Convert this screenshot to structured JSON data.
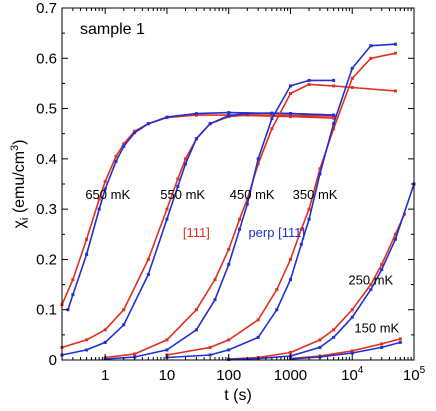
{
  "chart_data": {
    "type": "scatter",
    "title": "",
    "sample_label": "sample 1",
    "xlabel": "t (s)",
    "ylabel": "χ_i (emu/cm^3)",
    "ylabel_main": "χ",
    "ylabel_sub": "i",
    "ylabel_rest": " (emu/cm",
    "ylabel_sup": "3",
    "ylabel_close": ")",
    "x_scale": "log",
    "xlim": [
      0.2,
      100000
    ],
    "ylim": [
      0,
      0.7
    ],
    "x_ticks": [
      {
        "value": 1,
        "label": "1"
      },
      {
        "value": 10,
        "label": "10"
      },
      {
        "value": 100,
        "label": "100"
      },
      {
        "value": 1000,
        "label": "1000"
      },
      {
        "value": 10000,
        "base": "10",
        "exp": "4"
      },
      {
        "value": 100000,
        "base": "10",
        "exp": "5"
      }
    ],
    "y_ticks": [
      {
        "value": 0,
        "label": "0"
      },
      {
        "value": 0.1,
        "label": "0.1"
      },
      {
        "value": 0.2,
        "label": "0.2"
      },
      {
        "value": 0.3,
        "label": "0.3"
      },
      {
        "value": 0.4,
        "label": "0.4"
      },
      {
        "value": 0.5,
        "label": "0.5"
      },
      {
        "value": 0.6,
        "label": "0.6"
      },
      {
        "value": 0.7,
        "label": "0.7"
      }
    ],
    "series_colors": {
      "[111]": "#e03020",
      "perp [111]": "#2030d0"
    },
    "series_labels": [
      {
        "name": "[111]",
        "color": "#e03020",
        "x": 30,
        "y": 0.245
      },
      {
        "name": "perp [111]",
        "color": "#2030d0",
        "x": 600,
        "y": 0.245
      }
    ],
    "temperature_labels": [
      {
        "text": "650 mK",
        "x": 1.1,
        "y": 0.32
      },
      {
        "text": "550 mK",
        "x": 18,
        "y": 0.32
      },
      {
        "text": "450 mK",
        "x": 240,
        "y": 0.32
      },
      {
        "text": "350 mK",
        "x": 2500,
        "y": 0.32
      },
      {
        "text": "250 mK",
        "x": 20000,
        "y": 0.15
      },
      {
        "text": "150 mK",
        "x": 25000,
        "y": 0.055
      }
    ],
    "series": [
      {
        "name": "[111]",
        "temperature": "650 mK",
        "color": "#e03020",
        "x": [
          0.2,
          0.3,
          0.5,
          0.8,
          1,
          1.5,
          2,
          3,
          5,
          10,
          30,
          100,
          1000,
          5000
        ],
        "y": [
          0.11,
          0.16,
          0.24,
          0.32,
          0.355,
          0.405,
          0.43,
          0.455,
          0.47,
          0.482,
          0.487,
          0.487,
          0.484,
          0.481
        ]
      },
      {
        "name": "perp [111]",
        "temperature": "650 mK",
        "color": "#2030d0",
        "x": [
          0.25,
          0.3,
          0.5,
          0.8,
          1,
          1.5,
          2,
          3,
          5,
          10,
          30,
          100,
          1000,
          5000
        ],
        "y": [
          0.1,
          0.13,
          0.21,
          0.3,
          0.34,
          0.395,
          0.425,
          0.452,
          0.47,
          0.483,
          0.49,
          0.492,
          0.49,
          0.487
        ]
      },
      {
        "name": "[111]",
        "temperature": "550 mK",
        "color": "#e03020",
        "x": [
          0.2,
          0.5,
          1,
          2,
          5,
          10,
          15,
          20,
          30,
          50,
          100,
          200,
          500,
          1000,
          5000
        ],
        "y": [
          0.025,
          0.04,
          0.06,
          0.1,
          0.2,
          0.3,
          0.36,
          0.4,
          0.44,
          0.47,
          0.484,
          0.487,
          0.487,
          0.486,
          0.485
        ]
      },
      {
        "name": "perp [111]",
        "temperature": "550 mK",
        "color": "#2030d0",
        "x": [
          0.2,
          0.5,
          1,
          2,
          5,
          10,
          15,
          20,
          30,
          50,
          100,
          200,
          500,
          1000,
          5000
        ],
        "y": [
          0.01,
          0.02,
          0.035,
          0.07,
          0.17,
          0.28,
          0.345,
          0.39,
          0.44,
          0.47,
          0.486,
          0.49,
          0.491,
          0.49,
          0.487
        ]
      },
      {
        "name": "[111]",
        "temperature": "450 mK",
        "color": "#e03020",
        "x": [
          1,
          3,
          10,
          30,
          60,
          100,
          150,
          200,
          300,
          500,
          1000,
          2000,
          5000,
          10000,
          50000
        ],
        "y": [
          0.005,
          0.012,
          0.04,
          0.1,
          0.16,
          0.22,
          0.28,
          0.32,
          0.39,
          0.46,
          0.53,
          0.548,
          0.545,
          0.542,
          0.535
        ]
      },
      {
        "name": "perp [111]",
        "temperature": "450 mK",
        "color": "#2030d0",
        "x": [
          1,
          3,
          10,
          30,
          60,
          100,
          150,
          200,
          300,
          500,
          1000,
          2000,
          5000
        ],
        "y": [
          0.002,
          0.006,
          0.02,
          0.06,
          0.12,
          0.19,
          0.26,
          0.31,
          0.4,
          0.48,
          0.545,
          0.556,
          0.556
        ]
      },
      {
        "name": "[111]",
        "temperature": "350 mK",
        "color": "#e03020",
        "x": [
          10,
          50,
          100,
          300,
          600,
          1000,
          1500,
          2000,
          3000,
          5000,
          10000,
          20000,
          50000
        ],
        "y": [
          0.01,
          0.025,
          0.04,
          0.08,
          0.14,
          0.2,
          0.26,
          0.3,
          0.38,
          0.46,
          0.56,
          0.6,
          0.61
        ]
      },
      {
        "name": "perp [111]",
        "temperature": "350 mK",
        "color": "#2030d0",
        "x": [
          10,
          50,
          100,
          300,
          600,
          1000,
          1500,
          2000,
          3000,
          5000,
          10000,
          20000,
          50000
        ],
        "y": [
          0.005,
          0.01,
          0.02,
          0.045,
          0.1,
          0.16,
          0.23,
          0.28,
          0.37,
          0.47,
          0.58,
          0.625,
          0.628
        ]
      },
      {
        "name": "[111]",
        "temperature": "250 mK",
        "color": "#e03020",
        "x": [
          100,
          300,
          1000,
          3000,
          5000,
          10000,
          20000,
          30000,
          50000,
          70000
        ],
        "y": [
          0.002,
          0.005,
          0.015,
          0.04,
          0.06,
          0.1,
          0.15,
          0.19,
          0.25,
          0.29
        ]
      },
      {
        "name": "perp [111]",
        "temperature": "250 mK",
        "color": "#2030d0",
        "x": [
          100,
          300,
          1000,
          3000,
          5000,
          10000,
          20000,
          30000,
          50000,
          100000
        ],
        "y": [
          0.001,
          0.003,
          0.008,
          0.025,
          0.045,
          0.085,
          0.14,
          0.18,
          0.24,
          0.35
        ]
      },
      {
        "name": "[111]",
        "temperature": "150 mK",
        "color": "#e03020",
        "x": [
          1000,
          3000,
          10000,
          30000,
          60000
        ],
        "y": [
          0.003,
          0.008,
          0.018,
          0.032,
          0.042
        ]
      },
      {
        "name": "perp [111]",
        "temperature": "150 mK",
        "color": "#2030d0",
        "x": [
          1000,
          3000,
          10000,
          30000,
          60000
        ],
        "y": [
          0.002,
          0.006,
          0.014,
          0.025,
          0.035
        ]
      }
    ]
  }
}
